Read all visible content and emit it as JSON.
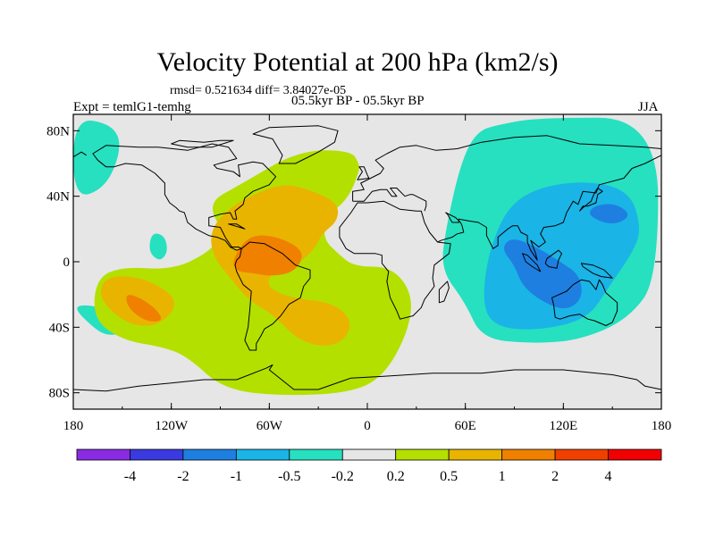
{
  "chart_data": {
    "type": "heatmap",
    "title": "Velocity Potential at 200 hPa (km2/s)",
    "stats_line": "rmsd= 0.521634  diff= 3.84027e-05",
    "left_label": "Expt = temlG1-temhg",
    "center_label": "05.5kyr BP - 05.5kyr BP",
    "right_label": "JJA",
    "x_range": [
      -180,
      180
    ],
    "y_range": [
      -90,
      90
    ],
    "x_ticks": [
      {
        "value": -180,
        "label": "180"
      },
      {
        "value": -120,
        "label": "120W"
      },
      {
        "value": -60,
        "label": "60W"
      },
      {
        "value": 0,
        "label": "0"
      },
      {
        "value": 60,
        "label": "60E"
      },
      {
        "value": 120,
        "label": "120E"
      },
      {
        "value": 180,
        "label": "180"
      }
    ],
    "y_ticks": [
      {
        "value": 80,
        "label": "80N"
      },
      {
        "value": 40,
        "label": "40N"
      },
      {
        "value": 0,
        "label": "0"
      },
      {
        "value": -40,
        "label": "40S"
      },
      {
        "value": -80,
        "label": "80S"
      }
    ],
    "colorbar": {
      "colors": [
        "#8a2be2",
        "#3a3ae0",
        "#1e7fe0",
        "#1ab4e6",
        "#26e0c0",
        "#e6e6e6",
        "#b4e000",
        "#e8b400",
        "#f08000",
        "#f04000",
        "#f00000"
      ],
      "labels": [
        "-4",
        "-2",
        "-1",
        "-0.5",
        "-0.2",
        "0.2",
        "0.5",
        "1",
        "2",
        "4"
      ]
    },
    "regions": [
      {
        "level": -0.5,
        "color": "#26e0c0",
        "points": [
          [
            60,
            -25
          ],
          [
            70,
            -47
          ],
          [
            100,
            -50
          ],
          [
            130,
            -48
          ],
          [
            160,
            -35
          ],
          [
            178,
            -10
          ],
          [
            178,
            88
          ],
          [
            105,
            88
          ],
          [
            82,
            84
          ],
          [
            67,
            80
          ],
          [
            57,
            60
          ],
          [
            48,
            20
          ],
          [
            45,
            -5
          ]
        ]
      },
      {
        "level": -0.5,
        "color": "#26e0c0",
        "points": [
          [
            -180,
            88
          ],
          [
            -156,
            84
          ],
          [
            -150,
            70
          ],
          [
            -160,
            45
          ],
          [
            -180,
            38
          ]
        ]
      },
      {
        "level": -0.5,
        "color": "#26e0c0",
        "points": [
          [
            -180,
            -28
          ],
          [
            -168,
            -40
          ],
          [
            -160,
            -45
          ],
          [
            -150,
            -44
          ],
          [
            -155,
            -30
          ],
          [
            -172,
            -26
          ]
        ]
      },
      {
        "level": -0.5,
        "color": "#26e0c0",
        "points": [
          [
            -132,
            18
          ],
          [
            -124,
            16
          ],
          [
            -122,
            6
          ],
          [
            -127,
            0
          ],
          [
            -134,
            6
          ]
        ]
      },
      {
        "level": -1,
        "color": "#1ab4e6",
        "points": [
          [
            70,
            -25
          ],
          [
            78,
            -40
          ],
          [
            105,
            -42
          ],
          [
            135,
            -35
          ],
          [
            148,
            -15
          ],
          [
            162,
            5
          ],
          [
            168,
            20
          ],
          [
            160,
            45
          ],
          [
            125,
            50
          ],
          [
            90,
            40
          ],
          [
            75,
            10
          ]
        ]
      },
      {
        "level": -1,
        "color": "#1ab4e6",
        "points": [
          [
            130,
            20
          ],
          [
            155,
            18
          ],
          [
            165,
            28
          ],
          [
            152,
            38
          ],
          [
            133,
            35
          ]
        ]
      },
      {
        "level": -2,
        "color": "#1e7fe0",
        "points": [
          [
            82,
            8
          ],
          [
            90,
            -2
          ],
          [
            95,
            -15
          ],
          [
            108,
            -25
          ],
          [
            122,
            -30
          ],
          [
            132,
            -22
          ],
          [
            130,
            -8
          ],
          [
            118,
            0
          ],
          [
            102,
            10
          ],
          [
            88,
            15
          ]
        ]
      },
      {
        "level": -2,
        "color": "#1e7fe0",
        "points": [
          [
            135,
            28
          ],
          [
            150,
            22
          ],
          [
            162,
            28
          ],
          [
            152,
            36
          ],
          [
            138,
            34
          ]
        ]
      },
      {
        "level": 0.5,
        "color": "#b4e000",
        "points": [
          [
            -166,
            -10
          ],
          [
            -150,
            -3
          ],
          [
            -120,
            -5
          ],
          [
            -98,
            5
          ],
          [
            -88,
            17
          ],
          [
            -98,
            36
          ],
          [
            -78,
            47
          ],
          [
            -42,
            68
          ],
          [
            -10,
            68
          ],
          [
            -5,
            60
          ],
          [
            -5,
            55
          ],
          [
            -12,
            38
          ],
          [
            -25,
            28
          ],
          [
            -27,
            14
          ],
          [
            -18,
            5
          ],
          [
            -8,
            -3
          ],
          [
            15,
            -3
          ],
          [
            28,
            -20
          ],
          [
            25,
            -43
          ],
          [
            10,
            -70
          ],
          [
            -10,
            -80
          ],
          [
            -52,
            -82
          ],
          [
            -88,
            -78
          ],
          [
            -110,
            -58
          ],
          [
            -125,
            -52
          ],
          [
            -150,
            -48
          ],
          [
            -168,
            -35
          ]
        ]
      },
      {
        "level": 1,
        "color": "#e8b400",
        "points": [
          [
            -96,
            20
          ],
          [
            -84,
            33
          ],
          [
            -72,
            40
          ],
          [
            -52,
            48
          ],
          [
            -35,
            44
          ],
          [
            -18,
            36
          ],
          [
            -18,
            25
          ],
          [
            -28,
            17
          ],
          [
            -32,
            8
          ],
          [
            -43,
            -2
          ],
          [
            -58,
            -6
          ],
          [
            -62,
            -15
          ],
          [
            -48,
            -22
          ],
          [
            -20,
            -25
          ],
          [
            -8,
            -38
          ],
          [
            -18,
            -52
          ],
          [
            -40,
            -50
          ],
          [
            -58,
            -32
          ],
          [
            -72,
            -24
          ],
          [
            -84,
            -10
          ],
          [
            -95,
            4
          ]
        ]
      },
      {
        "level": 1,
        "color": "#e8b400",
        "points": [
          [
            -160,
            -8
          ],
          [
            -135,
            -10
          ],
          [
            -114,
            -24
          ],
          [
            -128,
            -40
          ],
          [
            -148,
            -38
          ],
          [
            -165,
            -22
          ]
        ]
      },
      {
        "level": 2,
        "color": "#f08000",
        "points": [
          [
            -83,
            1
          ],
          [
            -72,
            17
          ],
          [
            -53,
            15
          ],
          [
            -38,
            6
          ],
          [
            -44,
            -6
          ],
          [
            -58,
            -9
          ],
          [
            -70,
            -7
          ],
          [
            -80,
            -6
          ]
        ]
      },
      {
        "level": 2,
        "color": "#f08000",
        "points": [
          [
            -148,
            -18
          ],
          [
            -132,
            -26
          ],
          [
            -124,
            -36
          ],
          [
            -135,
            -37
          ],
          [
            -147,
            -28
          ]
        ]
      }
    ]
  }
}
